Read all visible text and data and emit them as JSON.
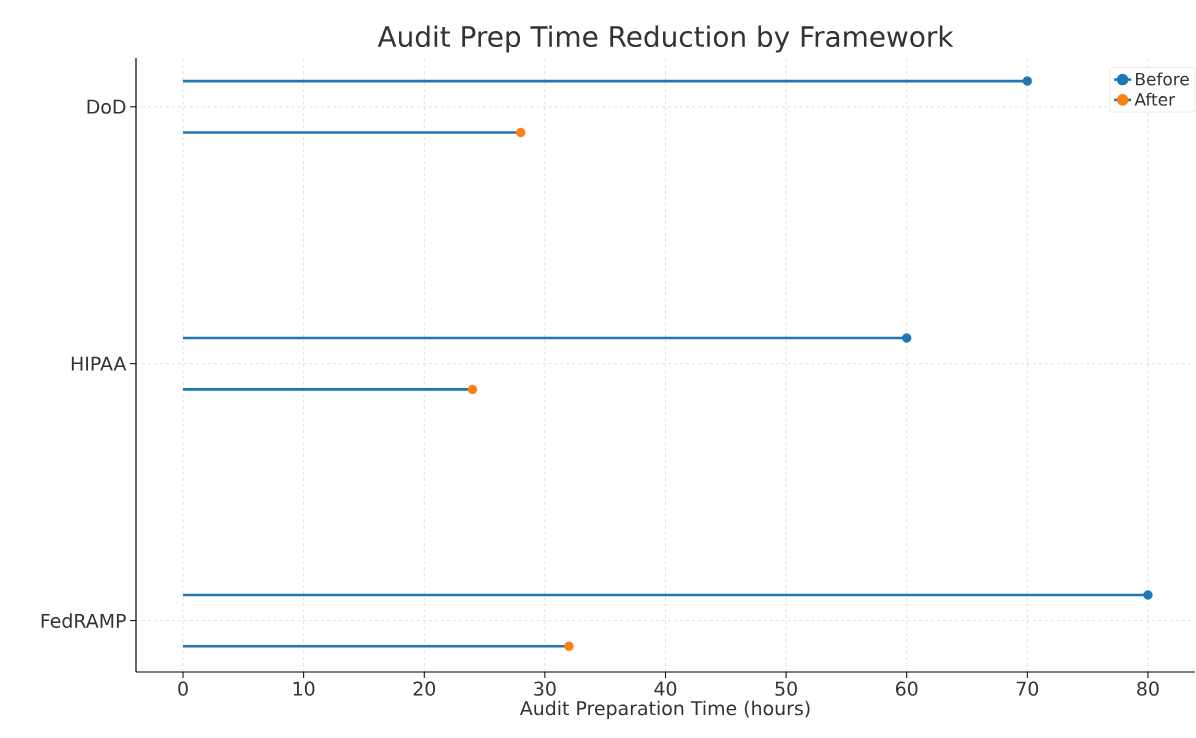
{
  "chart_data": {
    "type": "lollipop",
    "orientation": "horizontal",
    "title": "Audit Prep Time Reduction by Framework",
    "xlabel": "Audit Preparation Time (hours)",
    "categories": [
      "DoD",
      "HIPAA",
      "FedRAMP"
    ],
    "series": [
      {
        "name": "Before",
        "color": "#1f77b4",
        "values": [
          70,
          60,
          80
        ]
      },
      {
        "name": "After",
        "color": "#1f77b4",
        "colors": [
          "#ff7f0e",
          "#ff7f0e",
          "#ff7f0e"
        ],
        "values": [
          28,
          24,
          32
        ]
      }
    ],
    "xlim": [
      -3.9,
      83.9
    ],
    "xticks": [
      0,
      10,
      20,
      30,
      40,
      50,
      60,
      70,
      80
    ],
    "grid": true,
    "legend": "top right",
    "marker": "circle",
    "line_style": "solid"
  }
}
